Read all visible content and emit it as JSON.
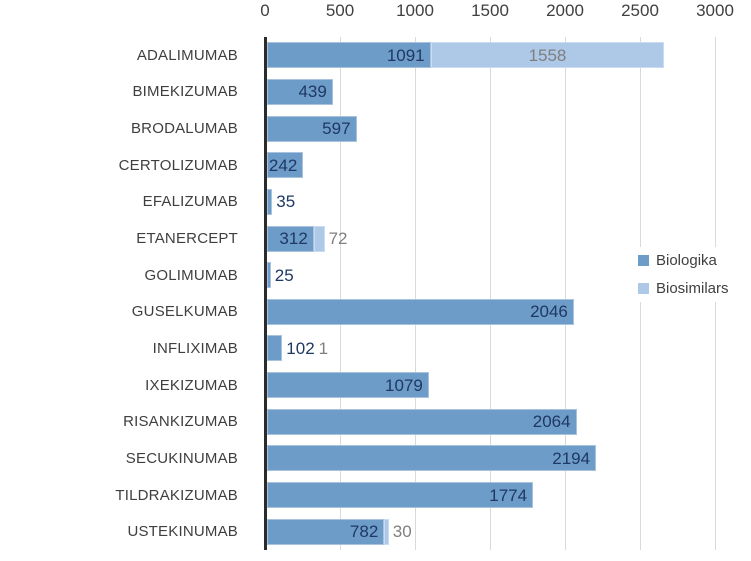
{
  "chart_data": {
    "type": "bar",
    "orientation": "horizontal",
    "stacked": true,
    "title": "",
    "xlabel": "",
    "ylabel": "",
    "grid": true,
    "categories": [
      "ADALIMUMAB",
      "BIMEKIZUMAB",
      "BRODALUMAB",
      "CERTOLIZUMAB",
      "EFALIZUMAB",
      "ETANERCEPT",
      "GOLIMUMAB",
      "GUSELKUMAB",
      "INFLIXIMAB",
      "IXEKIZUMAB",
      "RISANKIZUMAB",
      "SECUKINUMAB",
      "TILDRAKIZUMAB",
      "USTEKINUMAB"
    ],
    "series": [
      {
        "name": "Biologika",
        "color": "#6d9cc8",
        "label_color": "#1f3864",
        "values": [
          1091,
          439,
          597,
          242,
          35,
          312,
          25,
          2046,
          102,
          1079,
          2064,
          2194,
          1774,
          782
        ]
      },
      {
        "name": "Biosimilars",
        "color": "#aec9e8",
        "label_color": "#7f7f7f",
        "values": [
          1558,
          0,
          0,
          0,
          0,
          72,
          0,
          0,
          1,
          0,
          0,
          0,
          0,
          30
        ]
      }
    ],
    "x_axis": {
      "position": "top",
      "ticks": [
        0,
        500,
        1000,
        1500,
        2000,
        2500,
        3000
      ],
      "min": 0,
      "max": 3000
    },
    "legend": {
      "position": "right",
      "entries": [
        "Biologika",
        "Biosimilars"
      ]
    }
  }
}
